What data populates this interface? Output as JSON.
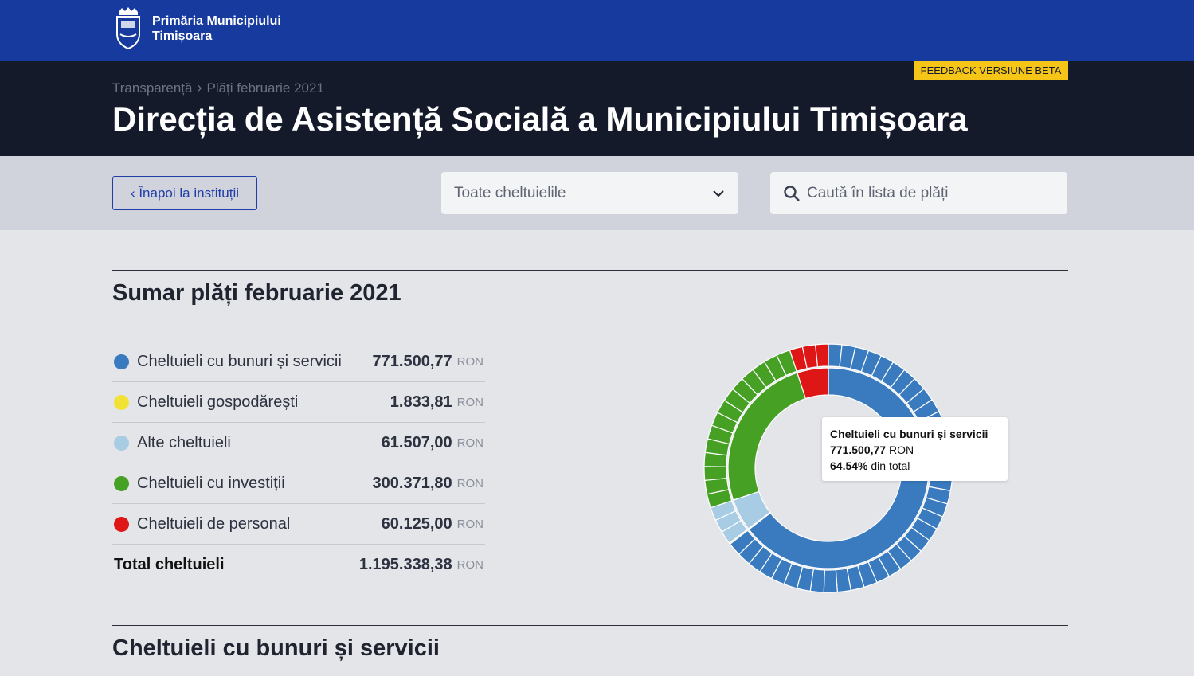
{
  "brand": {
    "line1": "Primăria Municipiului",
    "line2": "Timișoara"
  },
  "header": {
    "feedback": "FEEDBACK VERSIUNE BETA",
    "breadcrumb": [
      "Transparență",
      "Plăți februarie 2021"
    ],
    "title": "Direcția de Asistență Socială a Municipiului Timișoara"
  },
  "filters": {
    "back_label": "‹ Înapoi la instituții",
    "category_select": "Toate cheltuielile",
    "search_placeholder": "Caută în lista de plăți"
  },
  "summary": {
    "title": "Sumar plăți februarie 2021",
    "currency": "RON",
    "items": [
      {
        "label": "Cheltuieli cu bunuri și servicii",
        "amount": "771.500,77",
        "color": "#3a7bbf"
      },
      {
        "label": "Cheltuieli gospodărești",
        "amount": "1.833,81",
        "color": "#f2e233"
      },
      {
        "label": "Alte cheltuieli",
        "amount": "61.507,00",
        "color": "#a8cce4"
      },
      {
        "label": "Cheltuieli cu investiții",
        "amount": "300.371,80",
        "color": "#45a024"
      },
      {
        "label": "Cheltuieli de personal",
        "amount": "60.125,00",
        "color": "#df1616"
      }
    ],
    "total_label": "Total cheltuieli",
    "total_amount": "1.195.338,38"
  },
  "chart_data": {
    "type": "pie",
    "categories": [
      "Cheltuieli cu bunuri și servicii",
      "Cheltuieli gospodărești",
      "Alte cheltuieli",
      "Cheltuieli cu investiții",
      "Cheltuieli de personal"
    ],
    "values": [
      771500.77,
      1833.81,
      61507.0,
      300371.8,
      60125.0
    ],
    "colors": [
      "#3a7bbf",
      "#f2e233",
      "#a8cce4",
      "#45a024",
      "#df1616"
    ]
  },
  "tooltip": {
    "title": "Cheltuieli cu bunuri și servicii",
    "amount": "771.500,77",
    "currency": "RON",
    "percent": "64.54%",
    "percent_suffix": "din total"
  },
  "next_section": {
    "title": "Cheltuieli cu bunuri și servicii"
  }
}
